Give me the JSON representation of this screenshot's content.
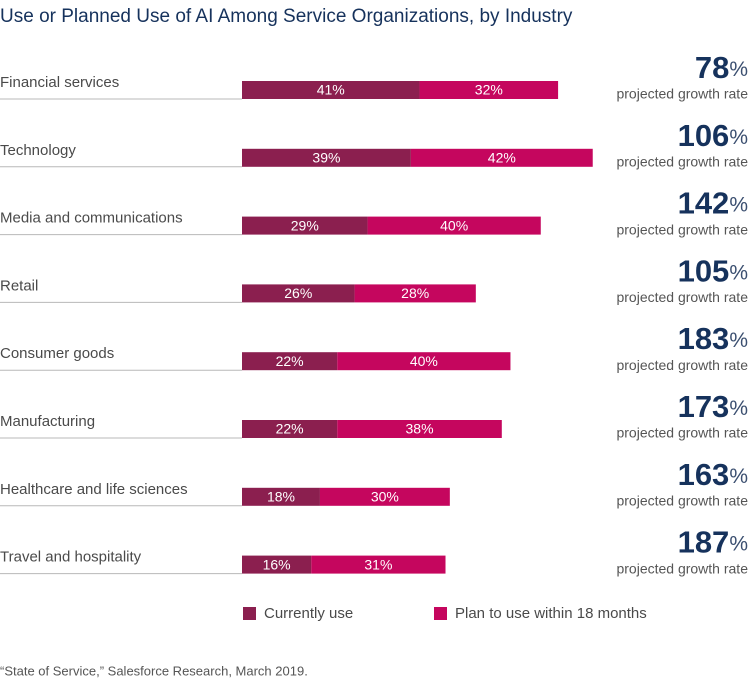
{
  "chart_data": {
    "type": "stacked_bar_horizontal",
    "title": "Use or Planned Use of AI Among Service Organizations, by Industry",
    "categories": [
      "Financial services",
      "Technology",
      "Media and communications",
      "Retail",
      "Consumer goods",
      "Manufacturing",
      "Healthcare and life sciences",
      "Travel and hospitality"
    ],
    "series": [
      {
        "name": "Currently use",
        "color": "#8b1f4f",
        "values": [
          41,
          39,
          29,
          26,
          22,
          22,
          18,
          16
        ],
        "value_labels": [
          "41%",
          "39%",
          "29%",
          "26%",
          "22%",
          "22%",
          "18%",
          "16%"
        ]
      },
      {
        "name": "Plan to use within 18 months",
        "color": "#c5065e",
        "values": [
          32,
          42,
          40,
          28,
          40,
          38,
          30,
          31
        ],
        "value_labels": [
          "32%",
          "42%",
          "40%",
          "28%",
          "40%",
          "38%",
          "30%",
          "31%"
        ]
      }
    ],
    "growth": {
      "label": "projected growth rate",
      "values": [
        78,
        106,
        142,
        105,
        183,
        173,
        163,
        187
      ],
      "value_labels": [
        "78%",
        "106%",
        "142%",
        "105%",
        "183%",
        "173%",
        "163%",
        "187%"
      ]
    },
    "source": "“State of Service,” Salesforce Research, March 2019."
  }
}
